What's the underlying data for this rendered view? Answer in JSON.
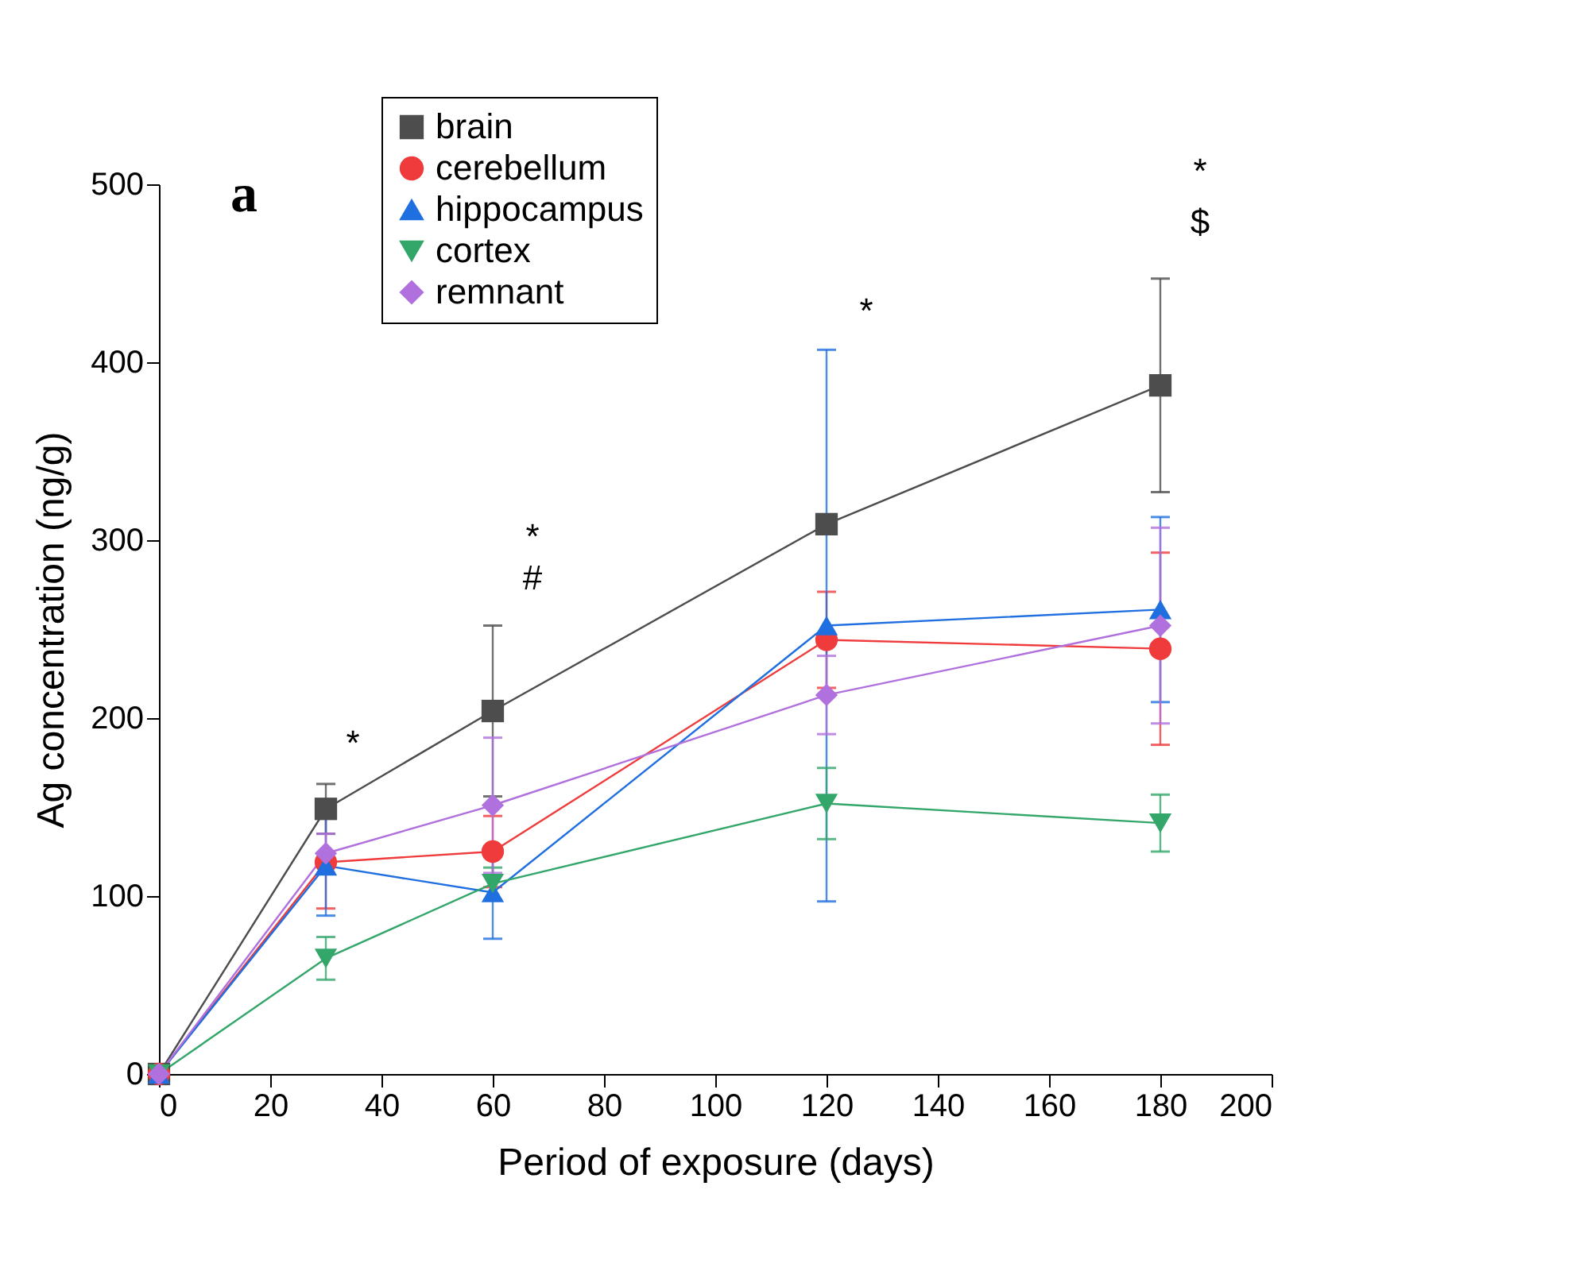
{
  "chart_data": {
    "type": "line",
    "xlabel": "Period of exposure (days)",
    "ylabel": "Ag concentration (ng/g)",
    "x": [
      0,
      30,
      60,
      120,
      180
    ],
    "xlim": [
      0,
      200
    ],
    "xticks": [
      0,
      20,
      40,
      60,
      80,
      100,
      120,
      140,
      160,
      180,
      200
    ],
    "ylim": [
      0,
      500
    ],
    "yticks": [
      0,
      100,
      200,
      300,
      400,
      500
    ],
    "grid": false,
    "legend": "top",
    "line_style": "solid",
    "series": [
      {
        "name": "brain",
        "color": "#4d4d4d",
        "marker": "square",
        "values": [
          0,
          149,
          204,
          309,
          387
        ],
        "errors": [
          null,
          14,
          48,
          null,
          60
        ]
      },
      {
        "name": "cerebellum",
        "color": "#ef3b3b",
        "marker": "circle",
        "values": [
          0,
          119,
          125,
          244,
          239
        ],
        "errors": [
          null,
          26,
          20,
          27,
          54
        ]
      },
      {
        "name": "hippocampus",
        "color": "#1f6fe0",
        "marker": "triangle",
        "values": [
          0,
          117,
          102,
          252,
          261
        ],
        "errors": [
          null,
          28,
          26,
          155,
          52
        ]
      },
      {
        "name": "cortex",
        "color": "#33a66a",
        "marker": "triangle-down",
        "values": [
          0,
          65,
          107,
          152,
          141
        ],
        "errors": [
          null,
          12,
          9,
          20,
          16
        ]
      },
      {
        "name": "remnant",
        "color": "#b070dd",
        "marker": "diamond",
        "values": [
          0,
          124,
          151,
          213,
          252
        ],
        "errors": [
          null,
          11,
          38,
          22,
          55
        ]
      }
    ],
    "annotations": [
      "a",
      "*",
      "*",
      "#",
      "*",
      "*",
      "$"
    ]
  }
}
